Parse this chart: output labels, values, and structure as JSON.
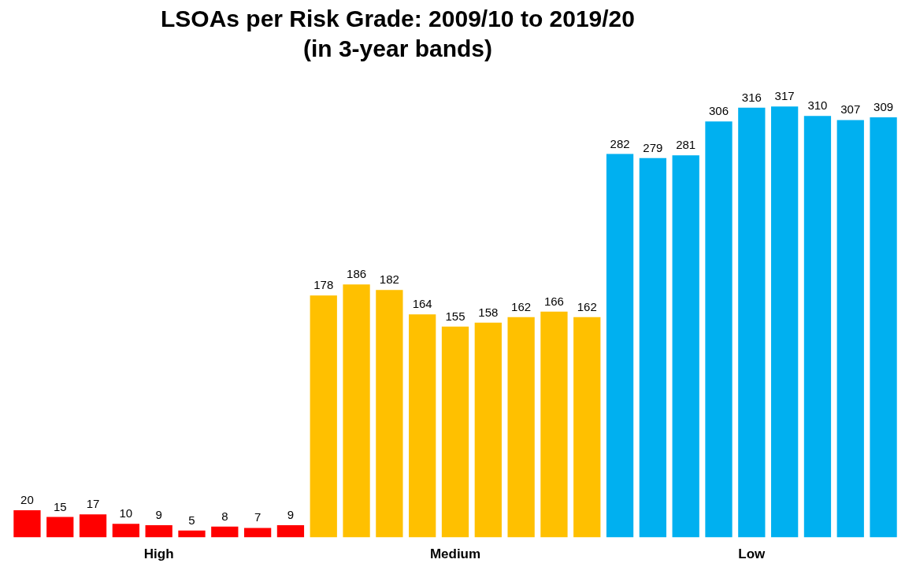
{
  "chart_data": {
    "type": "bar",
    "title": "LSOAs per Risk Grade: 2009/10 to 2019/20\n(in 3-year bands)",
    "categories": [
      null,
      null,
      null,
      null,
      "High",
      null,
      null,
      null,
      null,
      null,
      null,
      null,
      null,
      "Medium",
      null,
      null,
      null,
      null,
      null,
      null,
      null,
      null,
      "Low",
      null,
      null,
      null,
      null
    ],
    "values": [
      20,
      15,
      17,
      10,
      9,
      5,
      8,
      7,
      9,
      178,
      186,
      182,
      164,
      155,
      158,
      162,
      166,
      162,
      282,
      279,
      281,
      306,
      316,
      317,
      310,
      307,
      309
    ],
    "colors": [
      "#ff0000",
      "#ff0000",
      "#ff0000",
      "#ff0000",
      "#ff0000",
      "#ff0000",
      "#ff0000",
      "#ff0000",
      "#ff0000",
      "#ffc000",
      "#ffc000",
      "#ffc000",
      "#ffc000",
      "#ffc000",
      "#ffc000",
      "#ffc000",
      "#ffc000",
      "#ffc000",
      "#00b0f0",
      "#00b0f0",
      "#00b0f0",
      "#00b0f0",
      "#00b0f0",
      "#00b0f0",
      "#00b0f0",
      "#00b0f0",
      "#00b0f0"
    ],
    "data_labels": true,
    "grid": false
  }
}
